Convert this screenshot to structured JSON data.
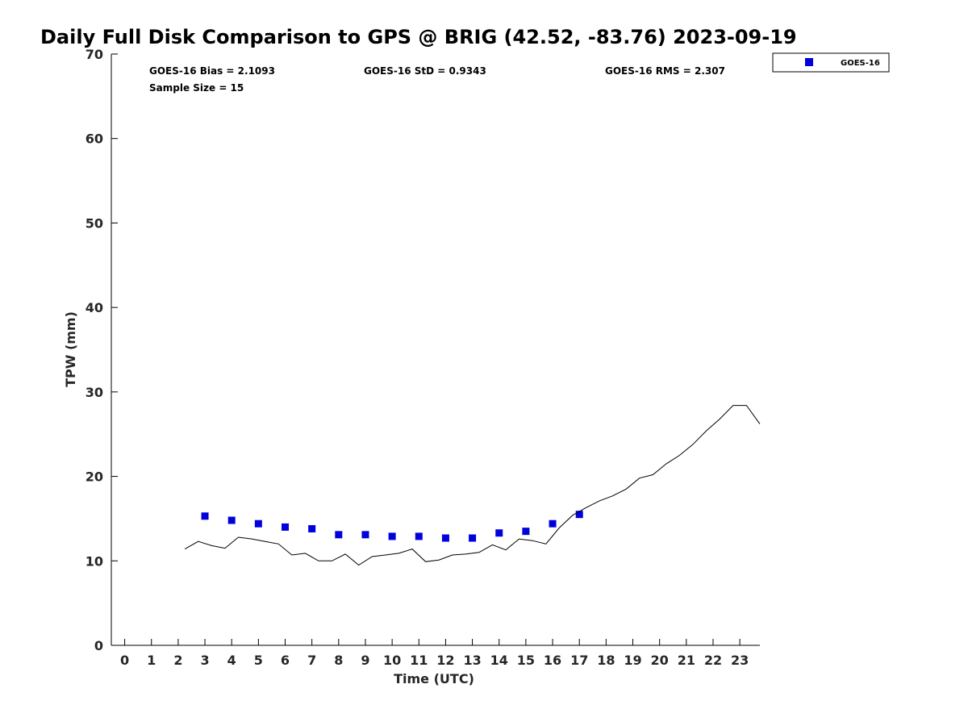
{
  "chart_data": {
    "type": "scatter",
    "title": "Daily Full Disk Comparison to GPS @ BRIG (42.52, -83.76) 2023-09-19",
    "xlabel": "Time (UTC)",
    "ylabel": "TPW (mm)",
    "xlim": [
      -0.5,
      23.75
    ],
    "ylim": [
      0,
      70
    ],
    "xticks": [
      "0",
      "1",
      "2",
      "3",
      "4",
      "5",
      "6",
      "7",
      "8",
      "9",
      "10",
      "11",
      "12",
      "13",
      "14",
      "15",
      "16",
      "17",
      "18",
      "19",
      "20",
      "21",
      "22",
      "23"
    ],
    "yticks": [
      "0",
      "10",
      "20",
      "30",
      "40",
      "50",
      "60",
      "70"
    ],
    "grid": false,
    "legend_position": "top-right",
    "stats": {
      "bias": "GOES-16 Bias = 2.1093",
      "std": "GOES-16 StD = 0.9343",
      "rms": "GOES-16 RMS = 2.307",
      "sample": "Sample Size = 15"
    },
    "series": [
      {
        "name": "GOES-16",
        "kind": "scatter",
        "color": "#0000dd",
        "marker": "square",
        "x": [
          3,
          4,
          5,
          6,
          7,
          8,
          9,
          10,
          11,
          12,
          13,
          14,
          15,
          16,
          17
        ],
        "y": [
          15.3,
          14.8,
          14.4,
          14.0,
          13.8,
          13.1,
          13.1,
          12.9,
          12.9,
          12.7,
          12.7,
          13.3,
          13.5,
          14.4,
          15.5
        ]
      },
      {
        "kind": "line",
        "color": "#000000",
        "x": [
          2.25,
          2.75,
          3.25,
          3.75,
          4.25,
          4.75,
          5.25,
          5.75,
          6.25,
          6.75,
          7.25,
          7.75,
          8.25,
          8.75,
          9.25,
          9.75,
          10.25,
          10.75,
          11.25,
          11.75,
          12.25,
          12.75,
          13.25,
          13.75,
          14.25,
          14.75,
          15.25,
          15.75,
          16.25,
          16.75,
          17.25,
          17.75,
          18.25,
          18.75,
          19.25,
          19.75,
          20.25,
          20.75,
          21.25,
          21.75,
          22.25,
          22.75,
          23.25,
          23.75
        ],
        "y": [
          11.4,
          12.3,
          11.8,
          11.5,
          12.8,
          12.6,
          12.3,
          12.0,
          10.7,
          10.9,
          10.0,
          10.0,
          10.8,
          9.5,
          10.5,
          10.7,
          10.9,
          11.4,
          9.9,
          10.1,
          10.7,
          10.8,
          11.0,
          11.9,
          11.3,
          12.6,
          12.4,
          12.0,
          13.9,
          15.4,
          16.3,
          17.1,
          17.7,
          18.5,
          19.8,
          20.2,
          21.5,
          22.5,
          23.8,
          25.4,
          26.8,
          28.4,
          28.4,
          26.2
        ]
      }
    ]
  }
}
